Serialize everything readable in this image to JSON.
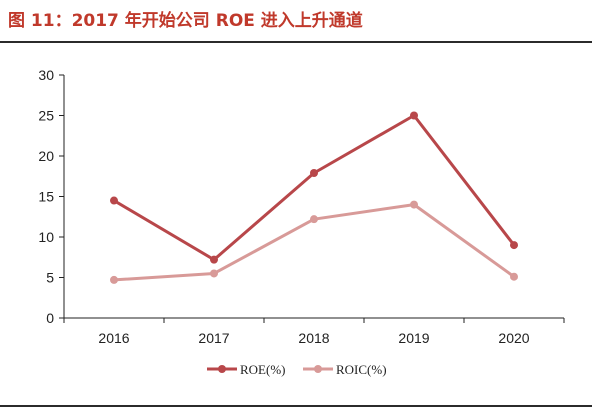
{
  "figure": {
    "title": "图 11：2017 年开始公司 ROE 进入上升通道"
  },
  "colors": {
    "title": "#c0392b",
    "roe": "#b8474a",
    "roic": "#d89a98",
    "axis": "#222222"
  },
  "chart_data": {
    "type": "line",
    "title": "",
    "xlabel": "",
    "ylabel": "",
    "categories": [
      "2016",
      "2017",
      "2018",
      "2019",
      "2020"
    ],
    "ylim": [
      0,
      30
    ],
    "yticks": [
      0,
      5,
      10,
      15,
      20,
      25,
      30
    ],
    "grid": false,
    "legend_position": "bottom",
    "series": [
      {
        "name": "ROE(%)",
        "values": [
          14.5,
          7.2,
          17.9,
          25.0,
          9.0
        ],
        "color": "#b8474a"
      },
      {
        "name": "ROIC(%)",
        "values": [
          4.7,
          5.5,
          12.2,
          14.0,
          5.1
        ],
        "color": "#d89a98"
      }
    ]
  }
}
